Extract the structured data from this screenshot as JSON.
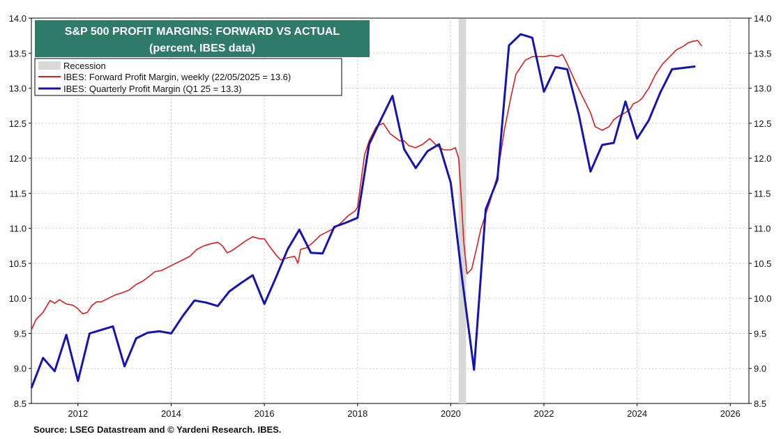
{
  "chart_data": {
    "type": "line",
    "title": "S&P 500 PROFIT MARGINS: FORWARD VS ACTUAL",
    "subtitle": "(percent, IBES data)",
    "source": "Source: LSEG Datastream and © Yardeni Research. IBES.",
    "x_ticks": [
      "2012",
      "2014",
      "2016",
      "2018",
      "2020",
      "2022",
      "2024",
      "2026"
    ],
    "y_ticks": [
      "8.5",
      "9.0",
      "9.5",
      "10.0",
      "10.5",
      "11.0",
      "11.5",
      "12.0",
      "12.5",
      "13.0",
      "13.5",
      "14.0"
    ],
    "xlim": [
      2011.0,
      2026.4
    ],
    "ylim": [
      8.5,
      14.0
    ],
    "grid": true,
    "legend_position": "top-left",
    "legend": {
      "recession": "Recession",
      "forward": "IBES: Forward Profit Margin, weekly (22/05/2025 = 13.6)",
      "quarterly": "IBES: Quarterly Profit Margin (Q1 25 = 13.3)"
    },
    "colors": {
      "forward": "#d42020",
      "quarterly": "#1414b4",
      "recession": "#d8d8d8",
      "title_box": "#2e7b6a"
    },
    "recession": [
      2020.17,
      2020.33
    ],
    "series": [
      {
        "name": "IBES: Forward Profit Margin, weekly (22/05/2025 = 13.6)",
        "x": [
          2011.0,
          2011.1,
          2011.25,
          2011.4,
          2011.5,
          2011.6,
          2011.75,
          2011.9,
          2012.0,
          2012.1,
          2012.2,
          2012.3,
          2012.4,
          2012.5,
          2012.65,
          2012.8,
          2012.95,
          2013.1,
          2013.25,
          2013.4,
          2013.5,
          2013.65,
          2013.8,
          2013.95,
          2014.1,
          2014.25,
          2014.4,
          2014.55,
          2014.7,
          2014.85,
          2015.0,
          2015.1,
          2015.2,
          2015.3,
          2015.45,
          2015.6,
          2015.75,
          2015.9,
          2016.0,
          2016.1,
          2016.25,
          2016.35,
          2016.5,
          2016.65,
          2016.72,
          2016.78,
          2016.9,
          2017.05,
          2017.2,
          2017.35,
          2017.5,
          2017.65,
          2017.8,
          2017.95,
          2018.0,
          2018.08,
          2018.15,
          2018.25,
          2018.4,
          2018.55,
          2018.7,
          2018.8,
          2018.9,
          2019.0,
          2019.1,
          2019.25,
          2019.4,
          2019.55,
          2019.7,
          2019.85,
          2020.0,
          2020.1,
          2020.17,
          2020.22,
          2020.28,
          2020.35,
          2020.45,
          2020.55,
          2020.65,
          2020.75,
          2020.85,
          2021.0,
          2021.15,
          2021.3,
          2021.4,
          2021.5,
          2021.6,
          2021.75,
          2021.9,
          2022.0,
          2022.15,
          2022.3,
          2022.4,
          2022.5,
          2022.6,
          2022.7,
          2022.85,
          2023.0,
          2023.1,
          2023.25,
          2023.4,
          2023.5,
          2023.6,
          2023.75,
          2023.85,
          2023.92,
          2024.0,
          2024.1,
          2024.25,
          2024.4,
          2024.55,
          2024.7,
          2024.85,
          2025.0,
          2025.1,
          2025.2,
          2025.3,
          2025.39
        ],
        "y": [
          9.55,
          9.7,
          9.8,
          9.97,
          9.93,
          9.98,
          9.92,
          9.9,
          9.85,
          9.78,
          9.8,
          9.9,
          9.95,
          9.95,
          10.0,
          10.05,
          10.08,
          10.12,
          10.2,
          10.25,
          10.3,
          10.38,
          10.4,
          10.45,
          10.5,
          10.55,
          10.6,
          10.7,
          10.75,
          10.78,
          10.8,
          10.75,
          10.65,
          10.68,
          10.75,
          10.82,
          10.88,
          10.85,
          10.85,
          10.75,
          10.62,
          10.55,
          10.58,
          10.6,
          10.5,
          10.7,
          10.72,
          10.8,
          10.9,
          10.95,
          11.0,
          11.08,
          11.18,
          11.25,
          11.3,
          11.7,
          12.05,
          12.25,
          12.45,
          12.5,
          12.35,
          12.3,
          12.25,
          12.25,
          12.18,
          12.15,
          12.2,
          12.28,
          12.18,
          12.12,
          12.12,
          12.15,
          12.0,
          11.5,
          10.8,
          10.35,
          10.42,
          10.7,
          11.0,
          11.2,
          11.4,
          11.75,
          12.4,
          12.9,
          13.2,
          13.3,
          13.4,
          13.45,
          13.45,
          13.45,
          13.47,
          13.45,
          13.48,
          13.35,
          13.2,
          13.05,
          12.85,
          12.65,
          12.45,
          12.4,
          12.45,
          12.55,
          12.6,
          12.65,
          12.7,
          12.78,
          12.8,
          12.85,
          13.0,
          13.2,
          13.35,
          13.45,
          13.55,
          13.6,
          13.65,
          13.67,
          13.68,
          13.6
        ]
      },
      {
        "name": "IBES: Quarterly Profit Margin (Q1 25 = 13.3)",
        "x": [
          2011.0,
          2011.25,
          2011.5,
          2011.75,
          2012.0,
          2012.25,
          2012.5,
          2012.75,
          2013.0,
          2013.25,
          2013.5,
          2013.75,
          2014.0,
          2014.25,
          2014.5,
          2014.75,
          2015.0,
          2015.25,
          2015.5,
          2015.75,
          2016.0,
          2016.25,
          2016.5,
          2016.75,
          2017.0,
          2017.25,
          2017.5,
          2017.75,
          2018.0,
          2018.25,
          2018.5,
          2018.75,
          2019.0,
          2019.25,
          2019.5,
          2019.75,
          2020.0,
          2020.25,
          2020.5,
          2020.75,
          2021.0,
          2021.25,
          2021.5,
          2021.75,
          2022.0,
          2022.25,
          2022.5,
          2022.75,
          2023.0,
          2023.25,
          2023.5,
          2023.75,
          2024.0,
          2024.25,
          2024.5,
          2024.75,
          2025.0,
          2025.25
        ],
        "y": [
          8.72,
          9.15,
          8.96,
          9.48,
          8.82,
          9.5,
          9.55,
          9.6,
          9.03,
          9.43,
          9.51,
          9.53,
          9.5,
          9.75,
          9.97,
          9.94,
          9.89,
          10.1,
          10.22,
          10.33,
          9.92,
          10.3,
          10.7,
          10.98,
          10.65,
          10.64,
          11.02,
          11.08,
          11.15,
          12.2,
          12.55,
          12.89,
          12.13,
          11.86,
          12.1,
          12.2,
          11.65,
          10.25,
          8.98,
          11.27,
          11.69,
          13.61,
          13.77,
          13.72,
          12.95,
          13.3,
          13.27,
          12.62,
          11.81,
          12.19,
          12.22,
          12.81,
          12.28,
          12.54,
          12.94,
          13.27,
          13.29,
          13.31
        ]
      }
    ]
  }
}
